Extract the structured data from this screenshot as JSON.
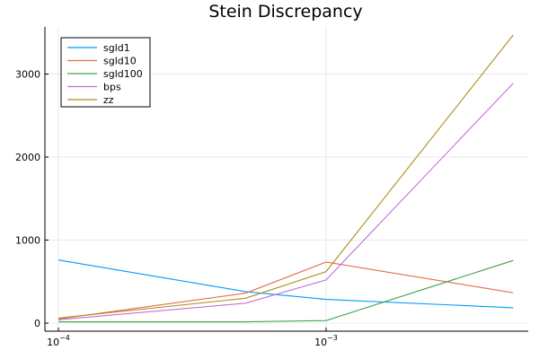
{
  "chart_data": {
    "type": "line",
    "title": "Stein Discrepancy",
    "xlabel": "",
    "ylabel": "",
    "x_scale": "log10",
    "xlim": [
      0.0001,
      0.005
    ],
    "ylim": [
      -80,
      3580
    ],
    "grid": true,
    "legend_position": "top-left",
    "x": [
      0.0001,
      0.0005,
      0.001,
      0.005
    ],
    "x_ticks": [
      {
        "value": 0.0001,
        "base": "10",
        "exp": "−4"
      },
      {
        "value": 0.001,
        "base": "10",
        "exp": "−3"
      }
    ],
    "y_ticks": [
      {
        "value": 0,
        "label": "0"
      },
      {
        "value": 1000,
        "label": "1000"
      },
      {
        "value": 2000,
        "label": "2000"
      },
      {
        "value": 3000,
        "label": "3000"
      }
    ],
    "series": [
      {
        "name": "sgld1",
        "color": "#009af9",
        "values": [
          760,
          380,
          285,
          185
        ]
      },
      {
        "name": "sgld10",
        "color": "#e26f46",
        "values": [
          50,
          360,
          735,
          365
        ]
      },
      {
        "name": "sgld100",
        "color": "#3ea44e",
        "values": [
          15,
          15,
          30,
          755
        ]
      },
      {
        "name": "bps",
        "color": "#c271d2",
        "values": [
          40,
          240,
          520,
          2890
        ]
      },
      {
        "name": "zz",
        "color": "#ad8f18",
        "values": [
          60,
          300,
          620,
          3470
        ]
      }
    ]
  }
}
